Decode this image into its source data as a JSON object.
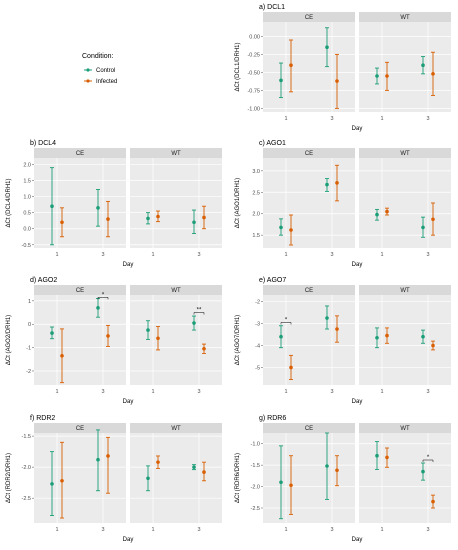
{
  "legend": {
    "title": "Condition:",
    "items": [
      {
        "label": "Control",
        "color": "#1b9e77"
      },
      {
        "label": "Infected",
        "color": "#d95f02"
      }
    ]
  },
  "chart_data": [
    {
      "type": "scatter",
      "title": "a) DCL1",
      "ylabel": "ΔCt (DCL1/DRH1)",
      "xlabel": "Day",
      "ylim": [
        -1.05,
        0.2
      ],
      "yticks": [
        "0.00",
        "-0.25",
        "-0.50",
        "-0.75",
        "-1.00"
      ],
      "ytick_values": [
        0,
        -0.25,
        -0.5,
        -0.75,
        -1.0
      ],
      "xticks": [
        "1",
        "3"
      ],
      "facets": [
        "CE",
        "WT"
      ],
      "points": [
        {
          "facet": "CE",
          "day": "1",
          "condition": "Control",
          "mean": -0.61,
          "low": -0.85,
          "high": -0.37
        },
        {
          "facet": "CE",
          "day": "1",
          "condition": "Infected",
          "mean": -0.4,
          "low": -0.77,
          "high": -0.05
        },
        {
          "facet": "CE",
          "day": "3",
          "condition": "Control",
          "mean": -0.15,
          "low": -0.42,
          "high": 0.12
        },
        {
          "facet": "CE",
          "day": "3",
          "condition": "Infected",
          "mean": -0.62,
          "low": -1.0,
          "high": -0.25
        },
        {
          "facet": "WT",
          "day": "1",
          "condition": "Control",
          "mean": -0.55,
          "low": -0.66,
          "high": -0.44
        },
        {
          "facet": "WT",
          "day": "1",
          "condition": "Infected",
          "mean": -0.55,
          "low": -0.75,
          "high": -0.36
        },
        {
          "facet": "WT",
          "day": "3",
          "condition": "Control",
          "mean": -0.4,
          "low": -0.52,
          "high": -0.28
        },
        {
          "facet": "WT",
          "day": "3",
          "condition": "Infected",
          "mean": -0.52,
          "low": -0.82,
          "high": -0.22
        }
      ],
      "sig": []
    },
    {
      "type": "scatter",
      "title": "b) DCL4",
      "ylabel": "ΔCt (DCL4/DRH1)",
      "xlabel": "Day",
      "ylim": [
        -0.6,
        2.2
      ],
      "yticks": [
        "2.0",
        "1.5",
        "1.0",
        "0.5",
        "0.0",
        "-0.5"
      ],
      "ytick_values": [
        2,
        1.5,
        1,
        0.5,
        0,
        -0.5
      ],
      "xticks": [
        "1",
        "3"
      ],
      "facets": [
        "CE",
        "WT"
      ],
      "points": [
        {
          "facet": "CE",
          "day": "1",
          "condition": "Control",
          "mean": 0.7,
          "low": -0.5,
          "high": 1.9
        },
        {
          "facet": "CE",
          "day": "1",
          "condition": "Infected",
          "mean": 0.2,
          "low": -0.25,
          "high": 0.65
        },
        {
          "facet": "CE",
          "day": "3",
          "condition": "Control",
          "mean": 0.65,
          "low": 0.08,
          "high": 1.22
        },
        {
          "facet": "CE",
          "day": "3",
          "condition": "Infected",
          "mean": 0.3,
          "low": -0.25,
          "high": 0.85
        },
        {
          "facet": "WT",
          "day": "1",
          "condition": "Control",
          "mean": 0.32,
          "low": 0.15,
          "high": 0.5
        },
        {
          "facet": "WT",
          "day": "1",
          "condition": "Infected",
          "mean": 0.38,
          "low": 0.22,
          "high": 0.55
        },
        {
          "facet": "WT",
          "day": "3",
          "condition": "Control",
          "mean": 0.2,
          "low": -0.15,
          "high": 0.58
        },
        {
          "facet": "WT",
          "day": "3",
          "condition": "Infected",
          "mean": 0.35,
          "low": 0.0,
          "high": 0.7
        }
      ],
      "sig": []
    },
    {
      "type": "scatter",
      "title": "c) AGO1",
      "ylabel": "ΔCt (AGO1/DRH1)",
      "xlabel": "Day",
      "ylim": [
        1.2,
        3.3
      ],
      "yticks": [
        "3.0",
        "2.5",
        "2.0",
        "1.5"
      ],
      "ytick_values": [
        3,
        2.5,
        2,
        1.5
      ],
      "xticks": [
        "1",
        "3"
      ],
      "facets": [
        "CE",
        "WT"
      ],
      "points": [
        {
          "facet": "CE",
          "day": "1",
          "condition": "Control",
          "mean": 1.68,
          "low": 1.5,
          "high": 1.88
        },
        {
          "facet": "CE",
          "day": "1",
          "condition": "Infected",
          "mean": 1.62,
          "low": 1.27,
          "high": 1.97
        },
        {
          "facet": "CE",
          "day": "3",
          "condition": "Control",
          "mean": 2.68,
          "low": 2.52,
          "high": 2.82
        },
        {
          "facet": "CE",
          "day": "3",
          "condition": "Infected",
          "mean": 2.72,
          "low": 2.3,
          "high": 3.13
        },
        {
          "facet": "WT",
          "day": "1",
          "condition": "Control",
          "mean": 1.98,
          "low": 1.85,
          "high": 2.1
        },
        {
          "facet": "WT",
          "day": "1",
          "condition": "Infected",
          "mean": 2.05,
          "low": 1.97,
          "high": 2.13
        },
        {
          "facet": "WT",
          "day": "3",
          "condition": "Control",
          "mean": 1.68,
          "low": 1.45,
          "high": 1.92
        },
        {
          "facet": "WT",
          "day": "3",
          "condition": "Infected",
          "mean": 1.87,
          "low": 1.5,
          "high": 2.25
        }
      ],
      "sig": []
    },
    {
      "type": "scatter",
      "title": "d) AGO2",
      "ylabel": "ΔCt (AGO2/DRH1)",
      "xlabel": "Day",
      "ylim": [
        -2.6,
        1.25
      ],
      "yticks": [
        "1",
        "0",
        "-1",
        "-2"
      ],
      "ytick_values": [
        1,
        0,
        -1,
        -2
      ],
      "xticks": [
        "1",
        "3"
      ],
      "facets": [
        "CE",
        "WT"
      ],
      "points": [
        {
          "facet": "CE",
          "day": "1",
          "condition": "Control",
          "mean": -0.38,
          "low": -0.62,
          "high": -0.12
        },
        {
          "facet": "CE",
          "day": "1",
          "condition": "Infected",
          "mean": -1.35,
          "low": -2.5,
          "high": -0.2
        },
        {
          "facet": "CE",
          "day": "3",
          "condition": "Control",
          "mean": 0.7,
          "low": 0.3,
          "high": 1.1
        },
        {
          "facet": "CE",
          "day": "3",
          "condition": "Infected",
          "mean": -0.5,
          "low": -0.95,
          "high": -0.05
        },
        {
          "facet": "WT",
          "day": "1",
          "condition": "Control",
          "mean": -0.25,
          "low": -0.65,
          "high": 0.15
        },
        {
          "facet": "WT",
          "day": "1",
          "condition": "Infected",
          "mean": -0.6,
          "low": -1.1,
          "high": -0.1
        },
        {
          "facet": "WT",
          "day": "3",
          "condition": "Control",
          "mean": 0.05,
          "low": -0.25,
          "high": 0.35
        },
        {
          "facet": "WT",
          "day": "3",
          "condition": "Infected",
          "mean": -1.05,
          "low": -1.25,
          "high": -0.85
        }
      ],
      "sig": [
        {
          "facet": "CE",
          "day": "3",
          "label": "*",
          "y": 1.15
        },
        {
          "facet": "WT",
          "day": "3",
          "label": "**",
          "y": 0.5
        }
      ]
    },
    {
      "type": "scatter",
      "title": "e) AGO7",
      "ylabel": "ΔCt (AGO7/DRH1)",
      "xlabel": "Day",
      "ylim": [
        -5.8,
        -1.7
      ],
      "yticks": [
        "-2",
        "-3",
        "-4",
        "-5"
      ],
      "ytick_values": [
        -2,
        -3,
        -4,
        -5
      ],
      "xticks": [
        "1",
        "3"
      ],
      "facets": [
        "CE",
        "WT"
      ],
      "points": [
        {
          "facet": "CE",
          "day": "1",
          "condition": "Control",
          "mean": -3.6,
          "low": -4.1,
          "high": -3.1
        },
        {
          "facet": "CE",
          "day": "1",
          "condition": "Infected",
          "mean": -5.0,
          "low": -5.55,
          "high": -4.45
        },
        {
          "facet": "CE",
          "day": "3",
          "condition": "Control",
          "mean": -2.75,
          "low": -3.25,
          "high": -2.2
        },
        {
          "facet": "CE",
          "day": "3",
          "condition": "Infected",
          "mean": -3.25,
          "low": -3.85,
          "high": -2.65
        },
        {
          "facet": "WT",
          "day": "1",
          "condition": "Control",
          "mean": -3.65,
          "low": -4.1,
          "high": -3.2
        },
        {
          "facet": "WT",
          "day": "1",
          "condition": "Infected",
          "mean": -3.55,
          "low": -3.9,
          "high": -3.2
        },
        {
          "facet": "WT",
          "day": "3",
          "condition": "Control",
          "mean": -3.6,
          "low": -3.9,
          "high": -3.3
        },
        {
          "facet": "WT",
          "day": "3",
          "condition": "Infected",
          "mean": -4.0,
          "low": -4.2,
          "high": -3.8
        }
      ],
      "sig": [
        {
          "facet": "CE",
          "day": "1",
          "label": "*",
          "y": -2.95
        }
      ]
    },
    {
      "type": "scatter",
      "title": "f) RDR2",
      "ylabel": "ΔCt (RDR2/DRH1)",
      "xlabel": "Day",
      "ylim": [
        -2.9,
        -1.45
      ],
      "yticks": [
        "-1.5",
        "-2.0",
        "-2.5"
      ],
      "ytick_values": [
        -1.5,
        -2.0,
        -2.5
      ],
      "xticks": [
        "1",
        "3"
      ],
      "facets": [
        "CE",
        "WT"
      ],
      "points": [
        {
          "facet": "CE",
          "day": "1",
          "condition": "Control",
          "mean": -2.27,
          "low": -2.78,
          "high": -1.75
        },
        {
          "facet": "CE",
          "day": "1",
          "condition": "Infected",
          "mean": -2.22,
          "low": -2.82,
          "high": -1.6
        },
        {
          "facet": "CE",
          "day": "3",
          "condition": "Control",
          "mean": -1.88,
          "low": -2.38,
          "high": -1.4
        },
        {
          "facet": "CE",
          "day": "3",
          "condition": "Infected",
          "mean": -1.82,
          "low": -2.42,
          "high": -1.52
        },
        {
          "facet": "WT",
          "day": "1",
          "condition": "Control",
          "mean": -2.18,
          "low": -2.38,
          "high": -1.98
        },
        {
          "facet": "WT",
          "day": "1",
          "condition": "Infected",
          "mean": -1.92,
          "low": -2.02,
          "high": -1.82
        },
        {
          "facet": "WT",
          "day": "3",
          "condition": "Control",
          "mean": -2.0,
          "low": -2.04,
          "high": -1.96
        },
        {
          "facet": "WT",
          "day": "3",
          "condition": "Infected",
          "mean": -2.08,
          "low": -2.22,
          "high": -1.92
        }
      ],
      "sig": []
    },
    {
      "type": "scatter",
      "title": "g) RDR6",
      "ylabel": "ΔCt (RDR6/DRH1)",
      "xlabel": "Day",
      "ylim": [
        -2.85,
        -0.75
      ],
      "yticks": [
        "-1.0",
        "-1.5",
        "-2.0",
        "-2.5"
      ],
      "ytick_values": [
        -1.0,
        -1.5,
        -2.0,
        -2.5
      ],
      "xticks": [
        "1",
        "3"
      ],
      "facets": [
        "CE",
        "WT"
      ],
      "points": [
        {
          "facet": "CE",
          "day": "1",
          "condition": "Control",
          "mean": -1.9,
          "low": -2.75,
          "high": -1.05
        },
        {
          "facet": "CE",
          "day": "1",
          "condition": "Infected",
          "mean": -1.97,
          "low": -2.65,
          "high": -1.28
        },
        {
          "facet": "CE",
          "day": "3",
          "condition": "Control",
          "mean": -1.52,
          "low": -2.3,
          "high": -0.75
        },
        {
          "facet": "CE",
          "day": "3",
          "condition": "Infected",
          "mean": -1.62,
          "low": -1.98,
          "high": -1.28
        },
        {
          "facet": "WT",
          "day": "1",
          "condition": "Control",
          "mean": -1.28,
          "low": -1.6,
          "high": -0.95
        },
        {
          "facet": "WT",
          "day": "1",
          "condition": "Infected",
          "mean": -1.32,
          "low": -1.55,
          "high": -1.1
        },
        {
          "facet": "WT",
          "day": "3",
          "condition": "Control",
          "mean": -1.65,
          "low": -1.85,
          "high": -1.45
        },
        {
          "facet": "WT",
          "day": "3",
          "condition": "Infected",
          "mean": -2.35,
          "low": -2.5,
          "high": -2.2
        }
      ],
      "sig": [
        {
          "facet": "WT",
          "day": "3",
          "label": "*",
          "y": -1.38
        }
      ]
    }
  ]
}
